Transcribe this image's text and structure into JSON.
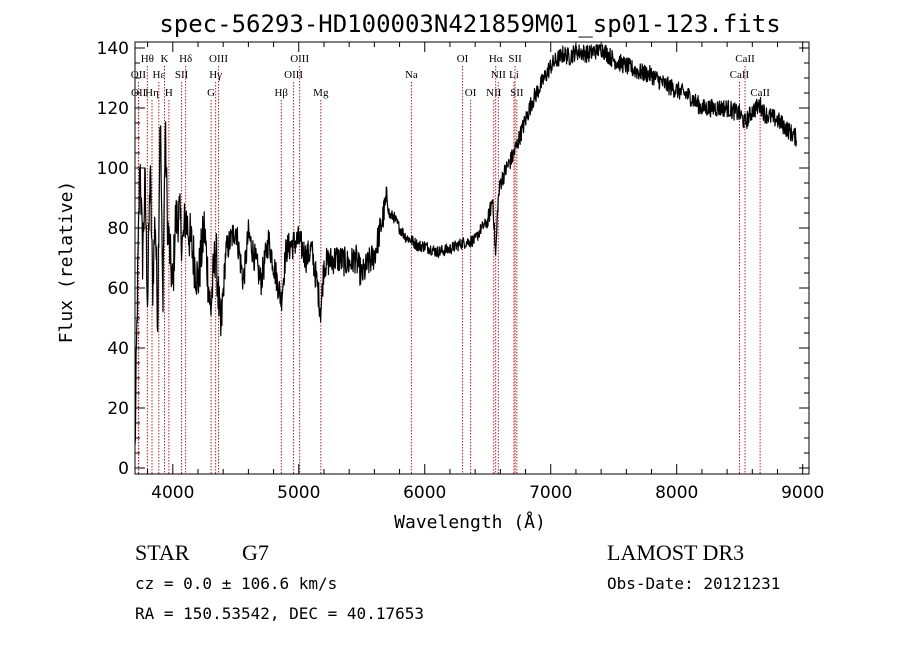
{
  "chart_data": {
    "type": "line",
    "title": "spec-56293-HD100003N421859M01_sp01-123.fits",
    "xlabel": "Wavelength (Å)",
    "ylabel": "Flux (relative)",
    "xlim": [
      3700,
      9050
    ],
    "ylim": [
      -2,
      142
    ],
    "xticks": [
      4000,
      5000,
      6000,
      7000,
      8000,
      9000
    ],
    "yticks": [
      0,
      20,
      40,
      60,
      80,
      100,
      120,
      140
    ],
    "series": [
      {
        "name": "spectrum",
        "x": [
          3700,
          3720,
          3740,
          3760,
          3780,
          3800,
          3820,
          3840,
          3860,
          3880,
          3900,
          3920,
          3940,
          3960,
          3980,
          4000,
          4020,
          4050,
          4080,
          4100,
          4150,
          4200,
          4250,
          4300,
          4340,
          4380,
          4420,
          4500,
          4560,
          4600,
          4700,
          4760,
          4800,
          4861,
          4900,
          5000,
          5060,
          5100,
          5150,
          5175,
          5200,
          5300,
          5400,
          5450,
          5500,
          5550,
          5600,
          5650,
          5700,
          5720,
          5750,
          5800,
          5850,
          5890,
          5950,
          6000,
          6100,
          6200,
          6300,
          6400,
          6450,
          6500,
          6540,
          6563,
          6580,
          6600,
          6650,
          6700,
          6750,
          6800,
          6850,
          6900,
          6950,
          7000,
          7050,
          7100,
          7150,
          7200,
          7300,
          7400,
          7500,
          7600,
          7700,
          7800,
          7900,
          8000,
          8100,
          8200,
          8300,
          8400,
          8500,
          8542,
          8600,
          8662,
          8700,
          8800,
          8900,
          8950
        ],
        "y": [
          5,
          60,
          103,
          70,
          95,
          55,
          100,
          60,
          85,
          50,
          122,
          55,
          112,
          80,
          70,
          60,
          82,
          85,
          74,
          84,
          74,
          62,
          80,
          52,
          74,
          44,
          72,
          80,
          62,
          78,
          62,
          76,
          68,
          56,
          73,
          76,
          70,
          73,
          60,
          52,
          68,
          70,
          68,
          70,
          64,
          68,
          71,
          80,
          90,
          84,
          84,
          80,
          77,
          76,
          74,
          74,
          72,
          73,
          75,
          76,
          80,
          82,
          90,
          70,
          88,
          95,
          100,
          104,
          110,
          116,
          122,
          126,
          130,
          134,
          136,
          138,
          137,
          139,
          138,
          140,
          136,
          134,
          132,
          131,
          128,
          126,
          124,
          120,
          120,
          120,
          118,
          115,
          119,
          121,
          118,
          116,
          112,
          110
        ]
      }
    ],
    "line_markers": [
      {
        "label": "Hθ",
        "wavelength": 3798,
        "row": 1
      },
      {
        "label": "OII",
        "wavelength": 3727,
        "row": 2
      },
      {
        "label": "OII",
        "wavelength": 3729,
        "row": 3
      },
      {
        "label": "K",
        "wavelength": 3934,
        "row": 1
      },
      {
        "label": "Hε",
        "wavelength": 3889,
        "row": 2
      },
      {
        "label": "Hη",
        "wavelength": 3835,
        "row": 3
      },
      {
        "label": "SII",
        "wavelength": 4070,
        "row": 2
      },
      {
        "label": "H",
        "wavelength": 3969,
        "row": 3
      },
      {
        "label": "Hδ",
        "wavelength": 4102,
        "row": 1
      },
      {
        "label": "OIII",
        "wavelength": 4363,
        "row": 1
      },
      {
        "label": "Hγ",
        "wavelength": 4340,
        "row": 2
      },
      {
        "label": "G",
        "wavelength": 4304,
        "row": 3
      },
      {
        "label": "OIII",
        "wavelength": 5007,
        "row": 1
      },
      {
        "label": "OIII",
        "wavelength": 4959,
        "row": 2
      },
      {
        "label": "Hβ",
        "wavelength": 4861,
        "row": 3
      },
      {
        "label": "Mg",
        "wavelength": 5175,
        "row": 3
      },
      {
        "label": "Na",
        "wavelength": 5894,
        "row": 2
      },
      {
        "label": "OI",
        "wavelength": 6300,
        "row": 1
      },
      {
        "label": "OI",
        "wavelength": 6364,
        "row": 3
      },
      {
        "label": "Hα",
        "wavelength": 6563,
        "row": 1
      },
      {
        "label": "NII",
        "wavelength": 6584,
        "row": 2
      },
      {
        "label": "NII",
        "wavelength": 6548,
        "row": 3
      },
      {
        "label": "SII",
        "wavelength": 6717,
        "row": 1
      },
      {
        "label": "Li",
        "wavelength": 6708,
        "row": 2
      },
      {
        "label": "SII",
        "wavelength": 6731,
        "row": 3
      },
      {
        "label": "CaII",
        "wavelength": 8542,
        "row": 1
      },
      {
        "label": "CaII",
        "wavelength": 8498,
        "row": 2
      },
      {
        "label": "CaII",
        "wavelength": 8662,
        "row": 3
      }
    ]
  },
  "info": {
    "object_class": "STAR",
    "subclass": "G7",
    "survey": "LAMOST DR3",
    "cz_line": "cz = 0.0 ± 106.6 km/s",
    "obs_date_line": "Obs-Date: 20121231",
    "coords_line": "RA = 150.53542, DEC =  40.17653"
  },
  "colors": {
    "axis": "#000000",
    "spectrum": "#000000",
    "marker_line": "#b22222"
  }
}
